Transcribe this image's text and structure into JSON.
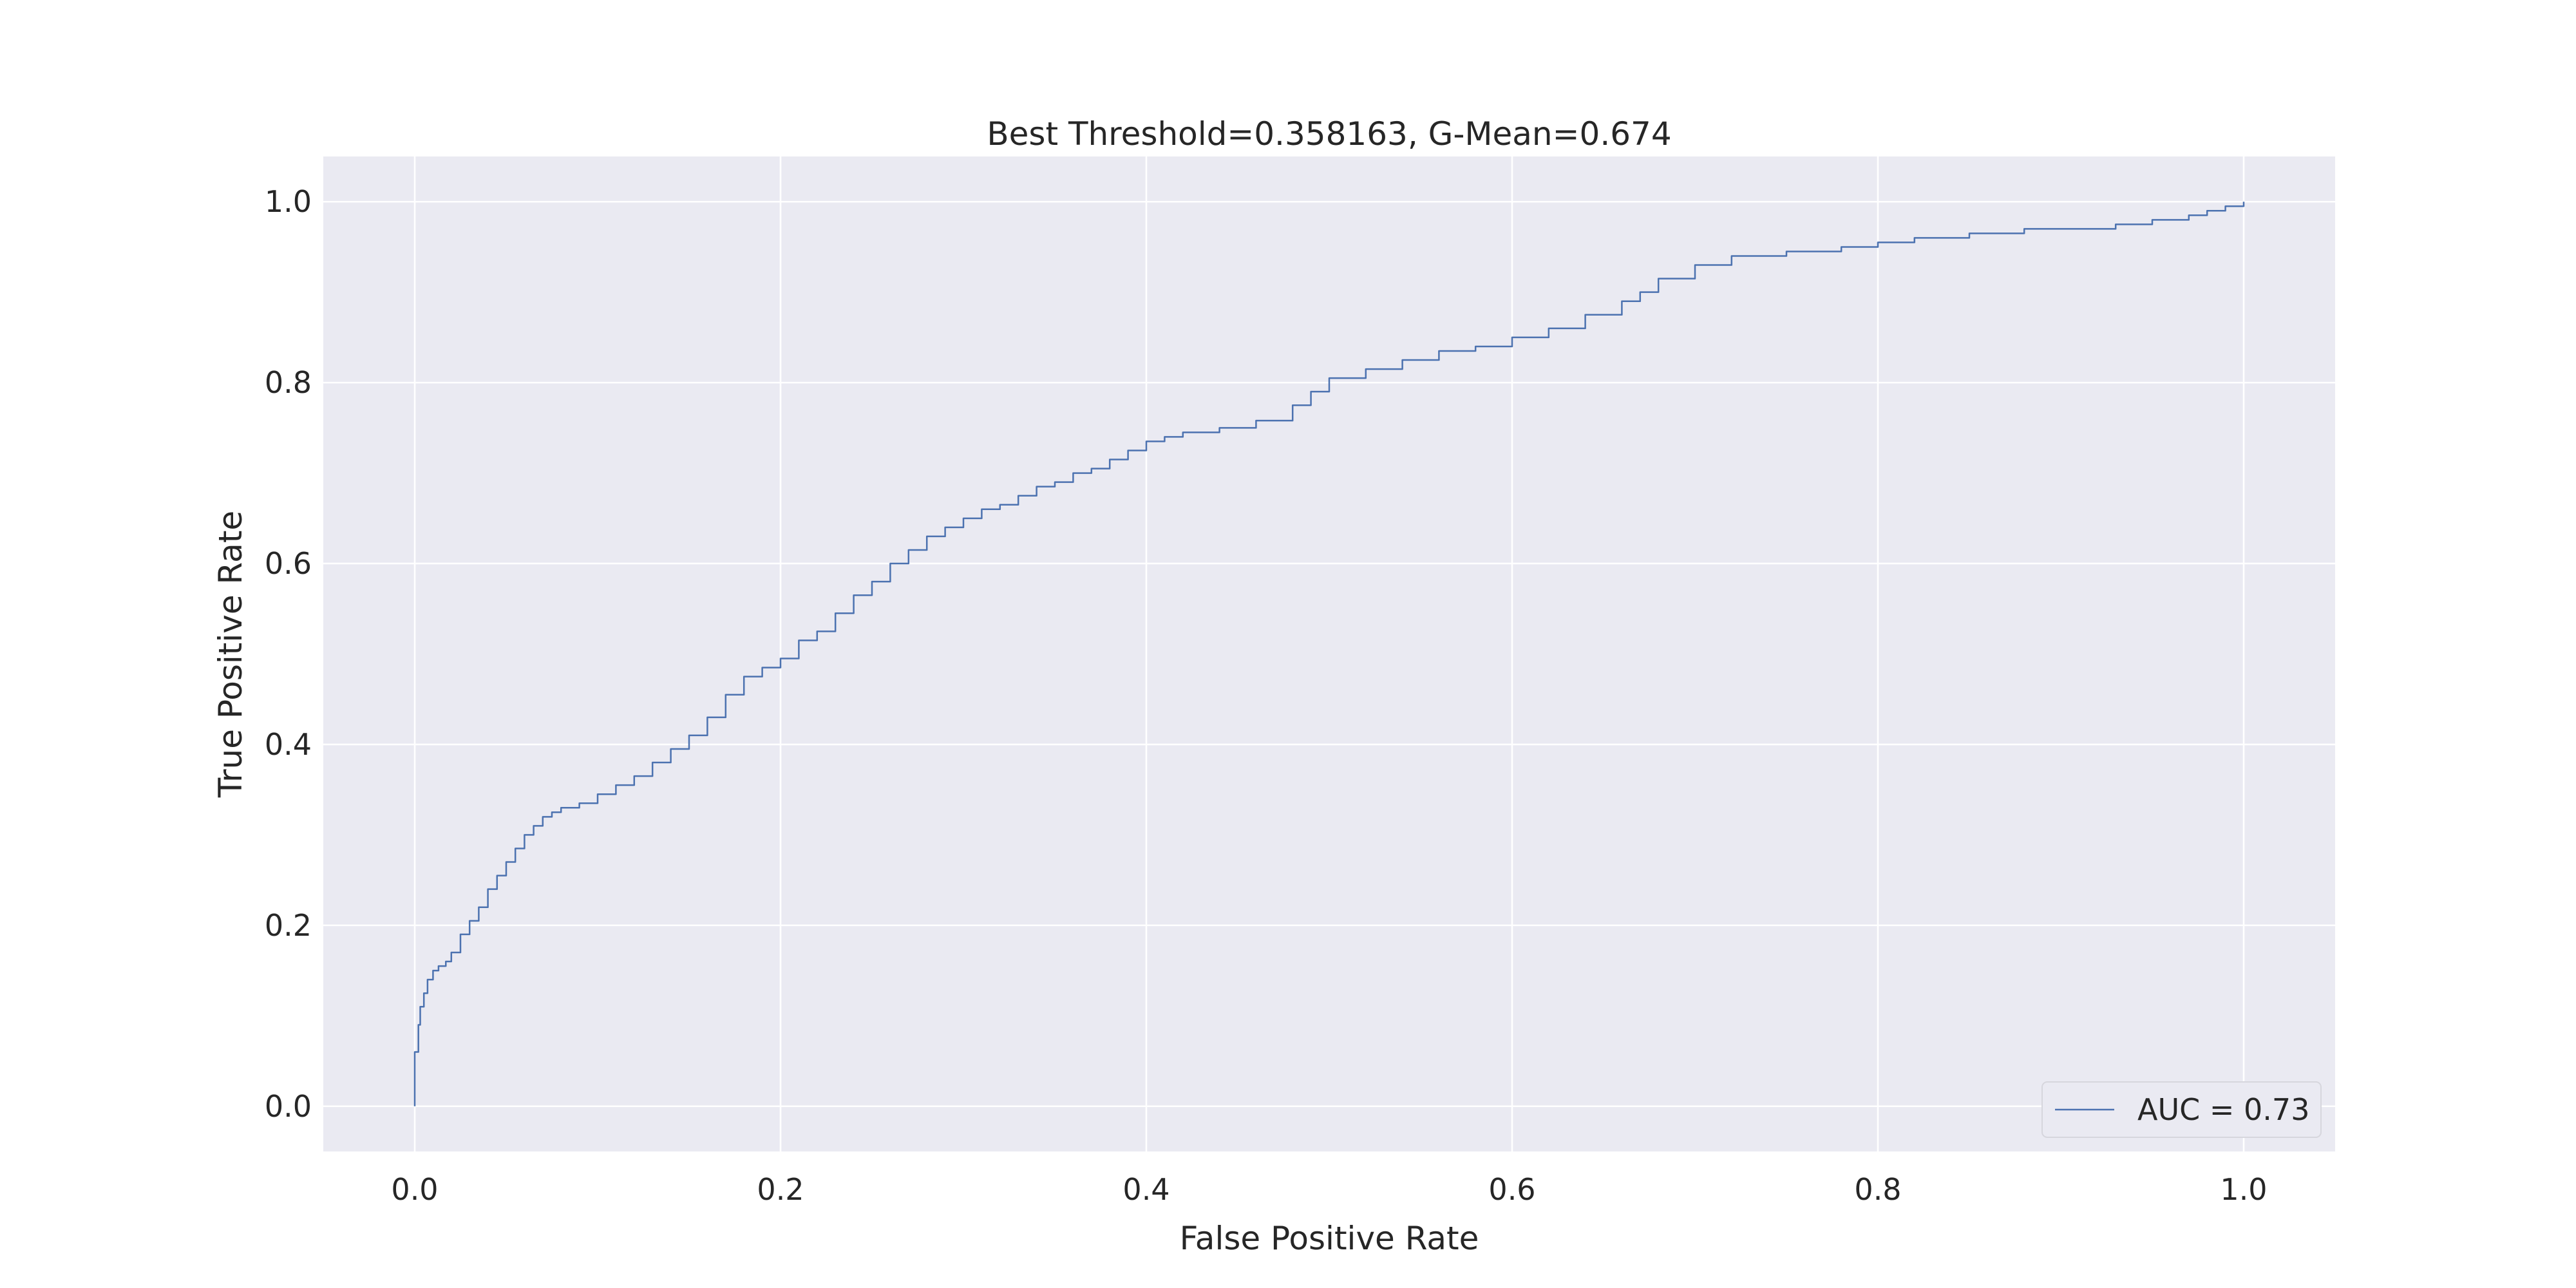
{
  "chart_data": {
    "type": "line",
    "title": "Best Threshold=0.358163, G-Mean=0.674",
    "xlabel": "False Positive Rate",
    "ylabel": "True Positive Rate",
    "xlim": [
      -0.05,
      1.05
    ],
    "ylim": [
      -0.05,
      1.05
    ],
    "xticks": [
      0.0,
      0.2,
      0.4,
      0.6,
      0.8,
      1.0
    ],
    "xtick_labels": [
      "0.0",
      "0.2",
      "0.4",
      "0.6",
      "0.8",
      "1.0"
    ],
    "yticks": [
      0.0,
      0.2,
      0.4,
      0.6,
      0.8,
      1.0
    ],
    "ytick_labels": [
      "0.0",
      "0.2",
      "0.4",
      "0.6",
      "0.8",
      "1.0"
    ],
    "grid": true,
    "legend_position": "lower-right",
    "background_color": "#eaeaf2",
    "grid_color": "#ffffff",
    "series": [
      {
        "name": "AUC = 0.73",
        "color": "#4c72b0",
        "x": [
          0.0,
          0.0,
          0.002,
          0.003,
          0.005,
          0.007,
          0.01,
          0.013,
          0.017,
          0.02,
          0.025,
          0.03,
          0.035,
          0.04,
          0.045,
          0.05,
          0.055,
          0.06,
          0.065,
          0.07,
          0.075,
          0.08,
          0.09,
          0.1,
          0.11,
          0.12,
          0.13,
          0.14,
          0.15,
          0.16,
          0.17,
          0.18,
          0.19,
          0.2,
          0.21,
          0.22,
          0.23,
          0.24,
          0.25,
          0.26,
          0.27,
          0.28,
          0.29,
          0.3,
          0.31,
          0.32,
          0.33,
          0.34,
          0.35,
          0.36,
          0.37,
          0.38,
          0.39,
          0.4,
          0.41,
          0.42,
          0.44,
          0.46,
          0.48,
          0.49,
          0.5,
          0.52,
          0.54,
          0.56,
          0.58,
          0.6,
          0.62,
          0.64,
          0.66,
          0.67,
          0.68,
          0.7,
          0.72,
          0.75,
          0.78,
          0.8,
          0.82,
          0.85,
          0.88,
          0.9,
          0.93,
          0.95,
          0.97,
          0.98,
          0.99,
          1.0
        ],
        "y": [
          0.0,
          0.06,
          0.09,
          0.11,
          0.125,
          0.14,
          0.15,
          0.155,
          0.16,
          0.17,
          0.19,
          0.205,
          0.22,
          0.24,
          0.255,
          0.27,
          0.285,
          0.3,
          0.31,
          0.32,
          0.325,
          0.33,
          0.335,
          0.345,
          0.355,
          0.365,
          0.38,
          0.395,
          0.41,
          0.43,
          0.455,
          0.475,
          0.485,
          0.495,
          0.515,
          0.525,
          0.545,
          0.565,
          0.58,
          0.6,
          0.615,
          0.63,
          0.64,
          0.65,
          0.66,
          0.665,
          0.675,
          0.685,
          0.69,
          0.7,
          0.705,
          0.715,
          0.725,
          0.735,
          0.74,
          0.745,
          0.75,
          0.758,
          0.775,
          0.79,
          0.805,
          0.815,
          0.825,
          0.835,
          0.84,
          0.85,
          0.86,
          0.875,
          0.89,
          0.9,
          0.915,
          0.93,
          0.94,
          0.945,
          0.95,
          0.955,
          0.96,
          0.965,
          0.97,
          0.97,
          0.975,
          0.98,
          0.985,
          0.99,
          0.995,
          1.0
        ]
      }
    ]
  }
}
